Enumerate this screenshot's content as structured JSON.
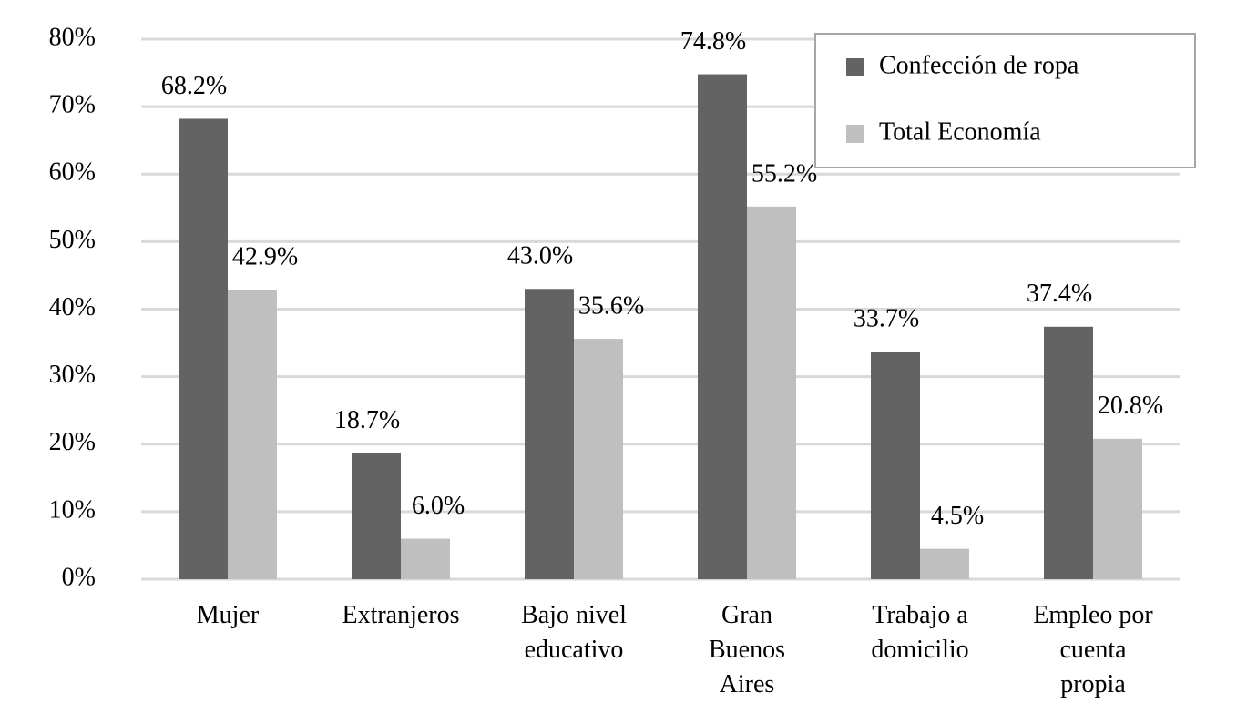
{
  "chart_data": {
    "type": "bar",
    "categories": [
      "Mujer",
      "Extranjeros",
      "Bajo nivel educativo",
      "Gran Buenos Aires",
      "Trabajo a domicilio",
      "Empleo por cuenta propia"
    ],
    "series": [
      {
        "name": "Confección de ropa",
        "color": "#636363",
        "values": [
          68.2,
          18.7,
          43.0,
          74.8,
          33.7,
          37.4
        ],
        "value_labels": [
          "68.2%",
          "18.7%",
          "43.0%",
          "74.8%",
          "33.7%",
          "37.4%"
        ]
      },
      {
        "name": "Total Economía",
        "color": "#bfbfbf",
        "values": [
          42.9,
          6.0,
          35.6,
          55.2,
          4.5,
          20.8
        ],
        "value_labels": [
          "42.9%",
          "6.0%",
          "35.6%",
          "55.2%",
          "4.5%",
          "20.8%"
        ]
      }
    ],
    "ylim": [
      0,
      80
    ],
    "yticks": [
      {
        "value": 0,
        "label": "0%"
      },
      {
        "value": 10,
        "label": "10%"
      },
      {
        "value": 20,
        "label": "20%"
      },
      {
        "value": 30,
        "label": "30%"
      },
      {
        "value": 40,
        "label": "40%"
      },
      {
        "value": 50,
        "label": "50%"
      },
      {
        "value": 60,
        "label": "60%"
      },
      {
        "value": 70,
        "label": "70%"
      },
      {
        "value": 80,
        "label": "80%"
      }
    ],
    "grid": true,
    "legend": "top-right"
  }
}
